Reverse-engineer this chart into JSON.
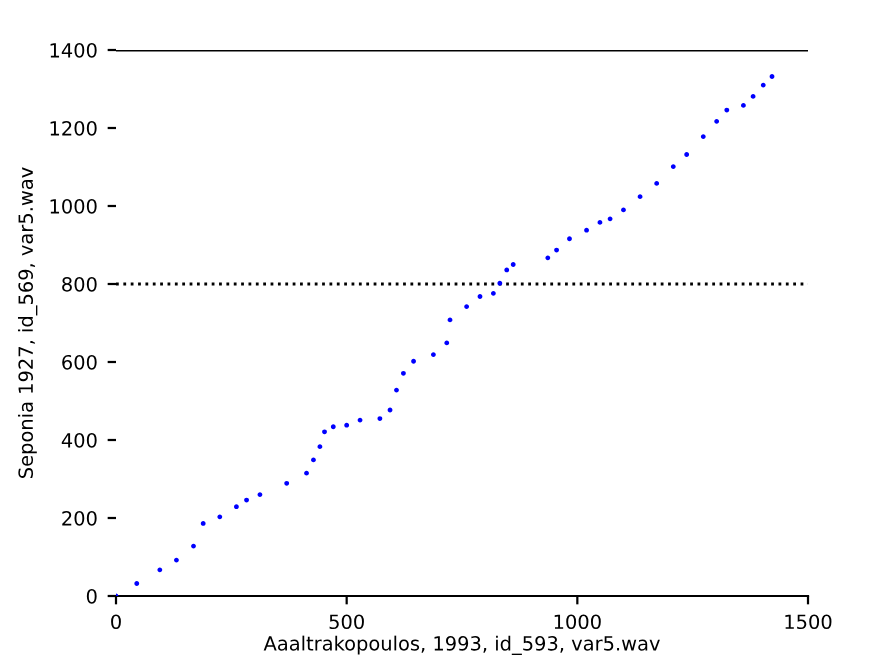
{
  "chart_data": {
    "type": "scatter",
    "xlabel": "Aaaltrakopoulos, 1993, id_593, var5.wav",
    "ylabel": "Seponia 1927, id_569, var5.wav",
    "x": [
      0,
      45,
      95,
      131,
      168,
      189,
      225,
      261,
      283,
      312,
      370,
      413,
      428,
      442,
      452,
      471,
      500,
      529,
      572,
      594,
      608,
      623,
      645,
      688,
      717,
      724,
      760,
      789,
      818,
      832,
      847,
      861,
      936,
      955,
      983,
      1020,
      1049,
      1071,
      1100,
      1136,
      1172,
      1208,
      1237,
      1273,
      1302,
      1324,
      1360,
      1381,
      1403,
      1422
    ],
    "series": [
      {
        "color": "#0000ff",
        "values": [
          0,
          32,
          67,
          92,
          128,
          186,
          203,
          229,
          246,
          260,
          289,
          315,
          349,
          383,
          421,
          434,
          438,
          451,
          455,
          477,
          528,
          571,
          602,
          619,
          649,
          708,
          742,
          768,
          776,
          802,
          836,
          850,
          867,
          887,
          916,
          938,
          958,
          967,
          990,
          1024,
          1058,
          1101,
          1132,
          1178,
          1217,
          1246,
          1258,
          1281,
          1310,
          1332
        ]
      }
    ],
    "xlim": [
      0,
      1500
    ],
    "ylim": [
      0,
      1400
    ],
    "xticks": [
      0,
      500,
      1000,
      1500
    ],
    "yticks": [
      0,
      200,
      400,
      600,
      800,
      1000,
      1200,
      1400
    ],
    "ref_lines": [
      {
        "axis": "y",
        "value": 1400,
        "line_style": "solid",
        "color": "#000000"
      },
      {
        "axis": "y",
        "value": 800,
        "line_style": "dotted",
        "color": "#000000"
      }
    ],
    "marker": "circle",
    "grid": false
  }
}
